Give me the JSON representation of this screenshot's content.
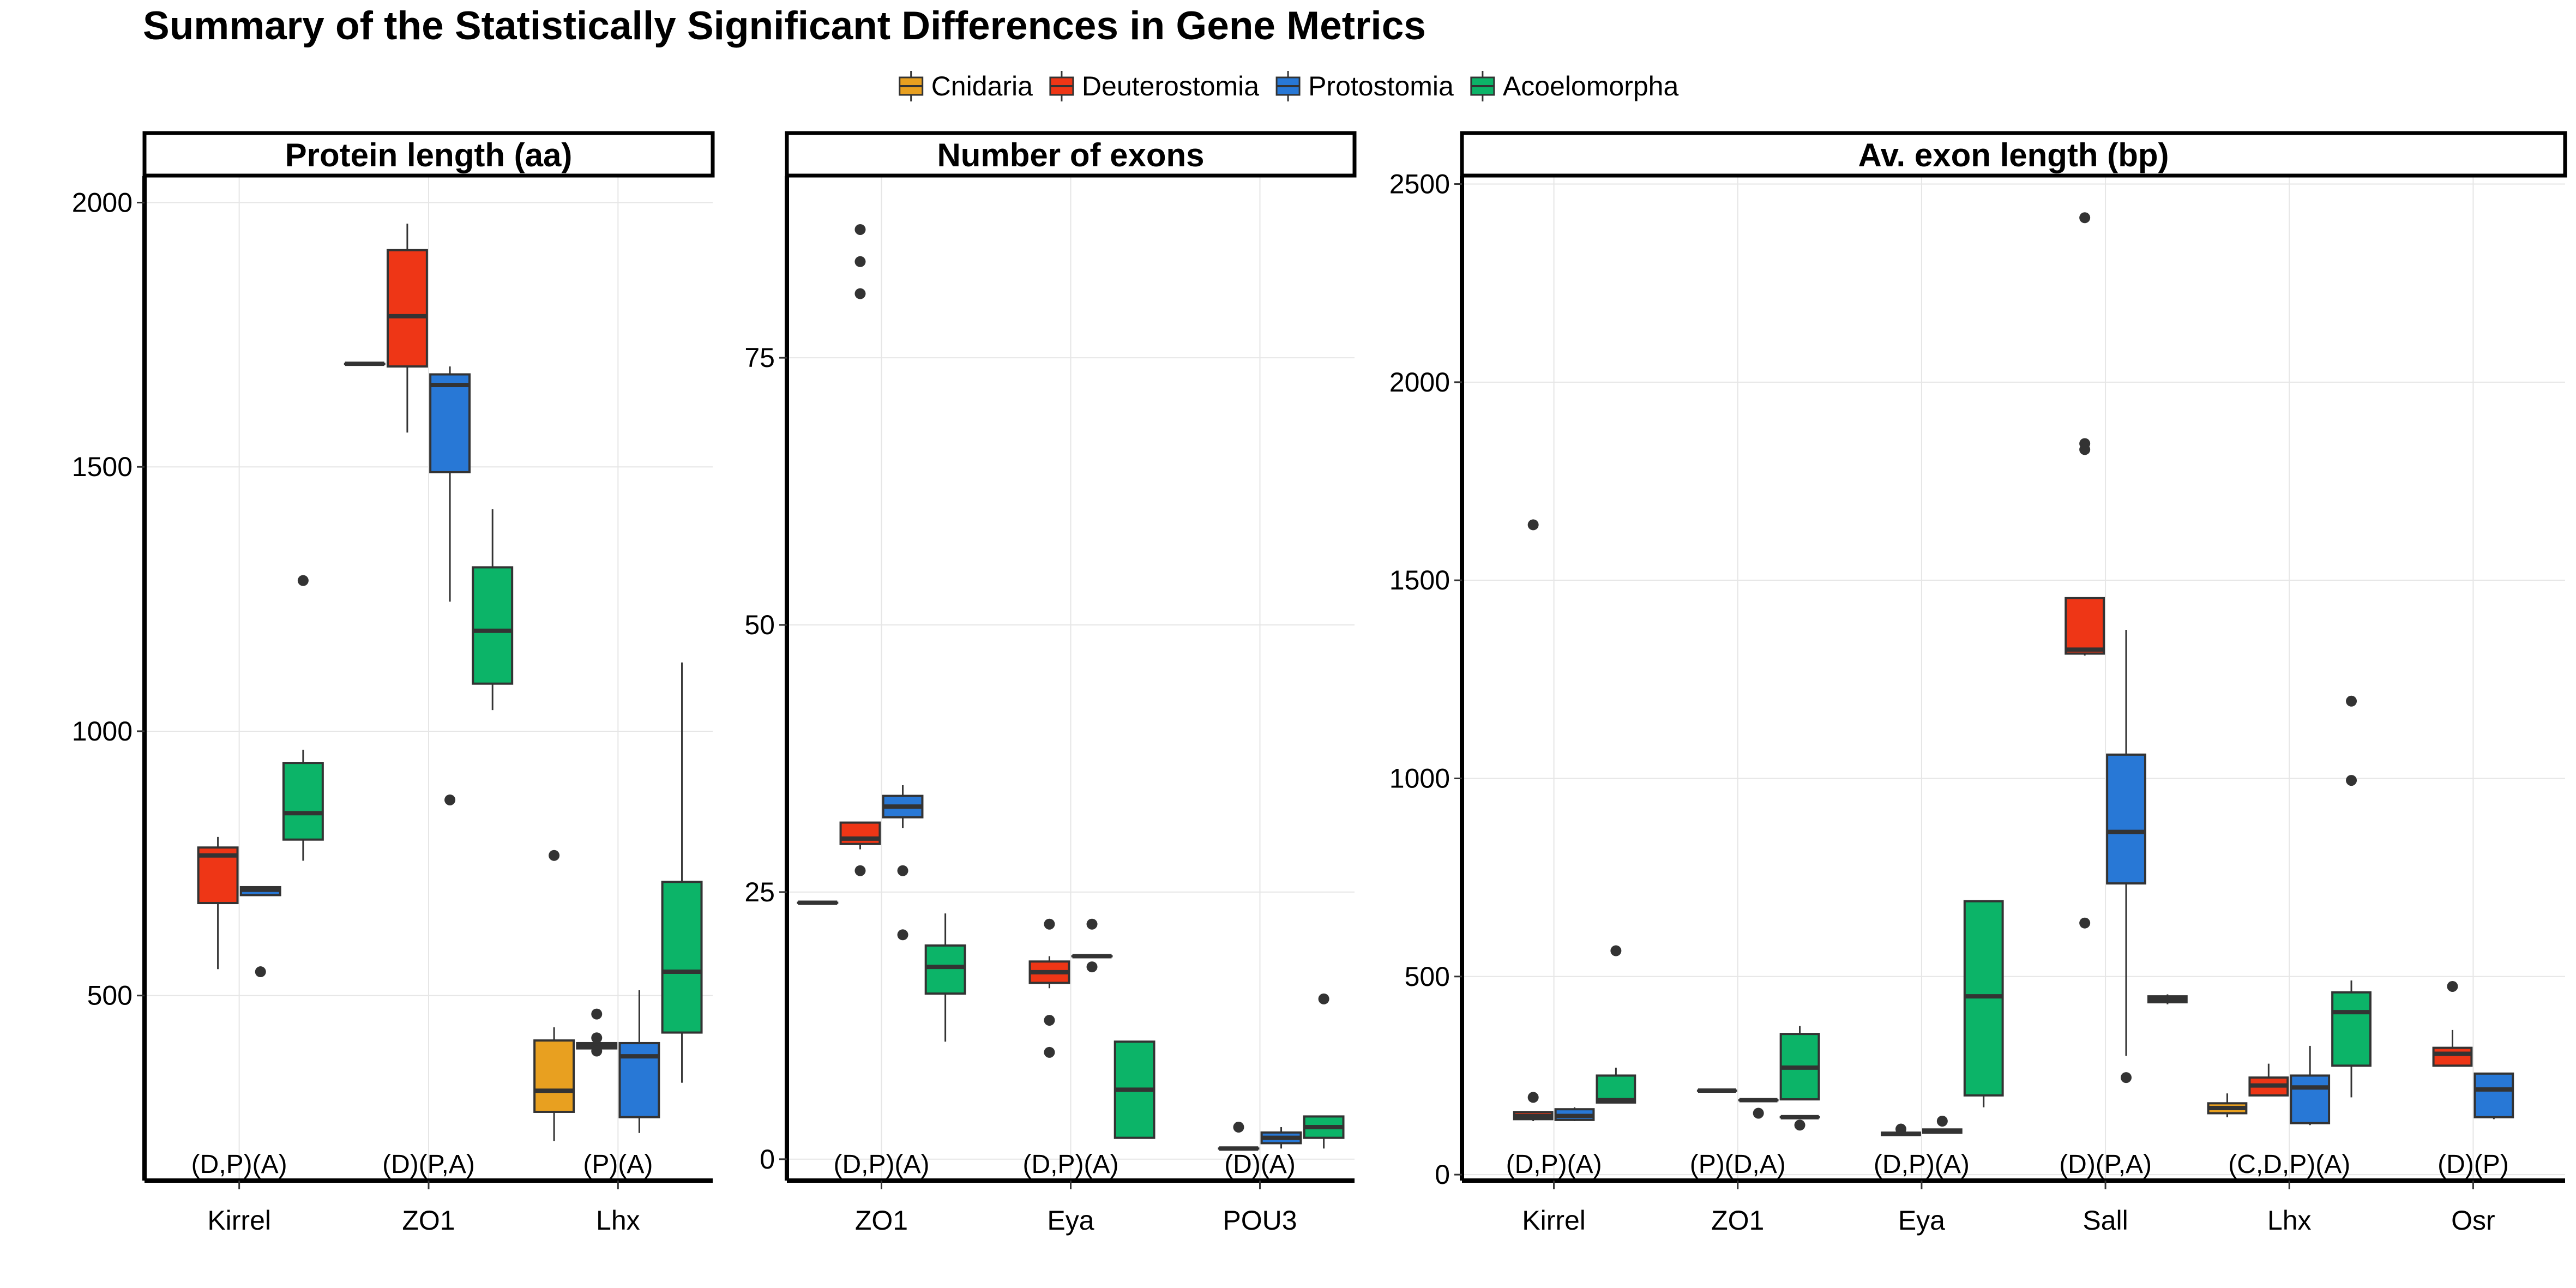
{
  "title": "Summary of the Statistically Significant Differences in Gene Metrics",
  "legend": {
    "placement": "top",
    "items": [
      {
        "name": "Cnidaria",
        "color": "#E8A020"
      },
      {
        "name": "Deuterostomia",
        "color": "#EE3616"
      },
      {
        "name": "Protostomia",
        "color": "#2878D6"
      },
      {
        "name": "Acoelomorpha",
        "color": "#0CB468"
      }
    ]
  },
  "chart_data": [
    {
      "type": "box",
      "title": "Protein length (aa)",
      "categories": [
        "Kirrel",
        "ZO1",
        "Lhx"
      ],
      "significance": [
        "(D,P)(A)",
        "(D)(P,A)",
        "(P)(A)"
      ],
      "yticks": [
        500,
        1000,
        1500,
        2000
      ],
      "ylim": [
        150,
        2050
      ],
      "grid": true,
      "boxes": [
        {
          "category": "Kirrel",
          "group": "Deuterostomia",
          "lo": 550,
          "q1": 675,
          "med": 765,
          "q3": 780,
          "hi": 800,
          "outliers": []
        },
        {
          "category": "Kirrel",
          "group": "Protostomia",
          "lo": 690,
          "q1": 690,
          "med": 700,
          "q3": 705,
          "hi": 705,
          "outliers": [
            545
          ]
        },
        {
          "category": "Kirrel",
          "group": "Acoelomorpha",
          "lo": 755,
          "q1": 795,
          "med": 845,
          "q3": 940,
          "hi": 965,
          "outliers": [
            1285
          ]
        },
        {
          "category": "ZO1",
          "group": "Cnidaria",
          "lo": 1695,
          "q1": 1695,
          "med": 1695,
          "q3": 1695,
          "hi": 1695,
          "outliers": []
        },
        {
          "category": "ZO1",
          "group": "Deuterostomia",
          "lo": 1565,
          "q1": 1690,
          "med": 1785,
          "q3": 1910,
          "hi": 1960,
          "outliers": []
        },
        {
          "category": "ZO1",
          "group": "Protostomia",
          "lo": 1245,
          "q1": 1490,
          "med": 1655,
          "q3": 1675,
          "hi": 1690,
          "outliers": [
            870
          ]
        },
        {
          "category": "ZO1",
          "group": "Acoelomorpha",
          "lo": 1040,
          "q1": 1090,
          "med": 1190,
          "q3": 1310,
          "hi": 1420,
          "outliers": []
        },
        {
          "category": "Lhx",
          "group": "Cnidaria",
          "lo": 225,
          "q1": 280,
          "med": 320,
          "q3": 415,
          "hi": 440,
          "outliers": [
            765
          ]
        },
        {
          "category": "Lhx",
          "group": "Deuterostomia",
          "lo": 400,
          "q1": 400,
          "med": 405,
          "q3": 410,
          "hi": 410,
          "outliers": [
            465,
            420,
            395
          ]
        },
        {
          "category": "Lhx",
          "group": "Protostomia",
          "lo": 240,
          "q1": 270,
          "med": 385,
          "q3": 410,
          "hi": 510,
          "outliers": []
        },
        {
          "category": "Lhx",
          "group": "Acoelomorpha",
          "lo": 335,
          "q1": 430,
          "med": 545,
          "q3": 715,
          "hi": 1130,
          "outliers": []
        }
      ]
    },
    {
      "type": "box",
      "title": "Number of exons",
      "categories": [
        "ZO1",
        "Eya",
        "POU3"
      ],
      "significance": [
        "(D,P)(A)",
        "(D,P)(A)",
        "(D)(A)"
      ],
      "yticks": [
        0,
        25,
        50,
        75
      ],
      "ylim": [
        -2,
        92
      ],
      "grid": true,
      "boxes": [
        {
          "category": "ZO1",
          "group": "Cnidaria",
          "lo": 24,
          "q1": 24,
          "med": 24,
          "q3": 24,
          "hi": 24,
          "outliers": []
        },
        {
          "category": "ZO1",
          "group": "Deuterostomia",
          "lo": 29,
          "q1": 29.5,
          "med": 30,
          "q3": 31.5,
          "hi": 31.5,
          "outliers": [
            87,
            84,
            81,
            27
          ]
        },
        {
          "category": "ZO1",
          "group": "Protostomia",
          "lo": 31,
          "q1": 32,
          "med": 33,
          "q3": 34,
          "hi": 35,
          "outliers": [
            27,
            21
          ]
        },
        {
          "category": "ZO1",
          "group": "Acoelomorpha",
          "lo": 11,
          "q1": 15.5,
          "med": 18,
          "q3": 20,
          "hi": 23,
          "outliers": []
        },
        {
          "category": "Eya",
          "group": "Deuterostomia",
          "lo": 16,
          "q1": 16.5,
          "med": 17.5,
          "q3": 18.5,
          "hi": 19,
          "outliers": [
            22,
            13,
            10
          ]
        },
        {
          "category": "Eya",
          "group": "Protostomia",
          "lo": 19,
          "q1": 19,
          "med": 19,
          "q3": 19,
          "hi": 19,
          "outliers": [
            22,
            18
          ]
        },
        {
          "category": "Eya",
          "group": "Acoelomorpha",
          "lo": 2,
          "q1": 2,
          "med": 6.5,
          "q3": 11,
          "hi": 11,
          "outliers": []
        },
        {
          "category": "POU3",
          "group": "Deuterostomia",
          "lo": 1,
          "q1": 1,
          "med": 1,
          "q3": 1,
          "hi": 1,
          "outliers": [
            3
          ]
        },
        {
          "category": "POU3",
          "group": "Protostomia",
          "lo": 1,
          "q1": 1.5,
          "med": 2,
          "q3": 2.5,
          "hi": 3,
          "outliers": []
        },
        {
          "category": "POU3",
          "group": "Acoelomorpha",
          "lo": 1,
          "q1": 2,
          "med": 3,
          "q3": 4,
          "hi": 4,
          "outliers": [
            15
          ]
        }
      ]
    },
    {
      "type": "box",
      "title": "Av. exon length (bp)",
      "categories": [
        "Kirrel",
        "ZO1",
        "Eya",
        "Sall",
        "Lhx",
        "Osr"
      ],
      "significance": [
        "(D,P)(A)",
        "(P)(D,A)",
        "(D,P)(A)",
        "(D)(P,A)",
        "(C,D,P)(A)",
        "(D)(P)"
      ],
      "yticks": [
        0,
        500,
        1000,
        1500,
        2000,
        2500
      ],
      "ylim": [
        -15,
        2520
      ],
      "grid": true,
      "boxes": [
        {
          "category": "Kirrel",
          "group": "Deuterostomia",
          "lo": 135,
          "q1": 140,
          "med": 148,
          "q3": 158,
          "hi": 160,
          "outliers": [
            1640,
            195
          ]
        },
        {
          "category": "Kirrel",
          "group": "Protostomia",
          "lo": 135,
          "q1": 138,
          "med": 148,
          "q3": 165,
          "hi": 170,
          "outliers": []
        },
        {
          "category": "Kirrel",
          "group": "Acoelomorpha",
          "lo": 180,
          "q1": 182,
          "med": 188,
          "q3": 250,
          "hi": 270,
          "outliers": [
            565
          ]
        },
        {
          "category": "ZO1",
          "group": "Deuterostomia",
          "lo": 212,
          "q1": 212,
          "med": 212,
          "q3": 212,
          "hi": 212,
          "outliers": []
        },
        {
          "category": "ZO1",
          "group": "Protostomia",
          "lo": 188,
          "q1": 188,
          "med": 188,
          "q3": 188,
          "hi": 188,
          "outliers": [
            155
          ]
        },
        {
          "category": "ZO1",
          "group": "Protostomia",
          "lo": 145,
          "q1": 145,
          "med": 145,
          "q3": 145,
          "hi": 145,
          "outliers": [
            125
          ]
        },
        {
          "category": "ZO1",
          "group": "Acoelomorpha",
          "lo": 190,
          "q1": 190,
          "med": 270,
          "q3": 355,
          "hi": 375,
          "outliers": []
        },
        {
          "category": "Eya",
          "group": "Deuterostomia",
          "lo": 100,
          "q1": 100,
          "med": 103,
          "q3": 106,
          "hi": 106,
          "outliers": [
            115
          ]
        },
        {
          "category": "Eya",
          "group": "Protostomia",
          "lo": 105,
          "q1": 106,
          "med": 110,
          "q3": 114,
          "hi": 114,
          "outliers": [
            135
          ]
        },
        {
          "category": "Eya",
          "group": "Acoelomorpha",
          "lo": 170,
          "q1": 200,
          "med": 450,
          "q3": 690,
          "hi": 690,
          "outliers": []
        },
        {
          "category": "Sall",
          "group": "Deuterostomia",
          "lo": 1310,
          "q1": 1315,
          "med": 1325,
          "q3": 1455,
          "hi": 1455,
          "outliers": [
            2415,
            1845,
            1830,
            635
          ]
        },
        {
          "category": "Sall",
          "group": "Protostomia",
          "lo": 300,
          "q1": 735,
          "med": 865,
          "q3": 1060,
          "hi": 1375,
          "outliers": [
            245
          ]
        },
        {
          "category": "Sall",
          "group": "Acoelomorpha",
          "lo": 430,
          "q1": 435,
          "med": 443,
          "q3": 450,
          "hi": 455,
          "outliers": []
        },
        {
          "category": "Lhx",
          "group": "Cnidaria",
          "lo": 145,
          "q1": 155,
          "med": 168,
          "q3": 180,
          "hi": 205,
          "outliers": []
        },
        {
          "category": "Lhx",
          "group": "Deuterostomia",
          "lo": 200,
          "q1": 200,
          "med": 225,
          "q3": 245,
          "hi": 280,
          "outliers": []
        },
        {
          "category": "Lhx",
          "group": "Protostomia",
          "lo": 125,
          "q1": 130,
          "med": 220,
          "q3": 250,
          "hi": 325,
          "outliers": []
        },
        {
          "category": "Lhx",
          "group": "Acoelomorpha",
          "lo": 195,
          "q1": 275,
          "med": 410,
          "q3": 460,
          "hi": 490,
          "outliers": [
            1195,
            995
          ]
        },
        {
          "category": "Osr",
          "group": "Deuterostomia",
          "lo": 275,
          "q1": 275,
          "med": 305,
          "q3": 320,
          "hi": 365,
          "outliers": [
            475
          ]
        },
        {
          "category": "Osr",
          "group": "Protostomia",
          "lo": 140,
          "q1": 145,
          "med": 215,
          "q3": 255,
          "hi": 255,
          "outliers": []
        }
      ]
    }
  ]
}
